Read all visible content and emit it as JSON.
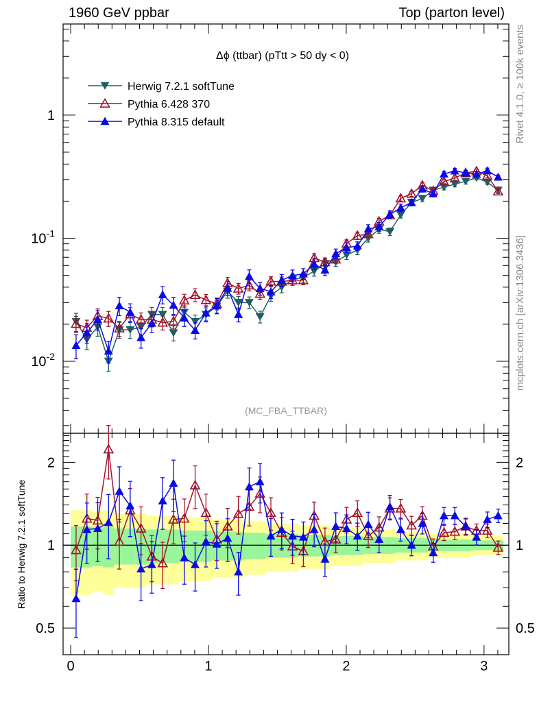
{
  "header": {
    "left": "1960 GeV ppbar",
    "right": "Top (parton level)"
  },
  "side_labels": {
    "rivet": "Rivet 4.1.0, ≥ 100k events",
    "mcplots": "mcplots.cern.ch [arXiv:1306.3436]"
  },
  "colors": {
    "herwig": "#1f5f62",
    "pythia6": "#a3122b",
    "pythia8": "#0a0ae6",
    "band_inner": "#99f599",
    "band_outer": "#ffff99"
  },
  "chart_data": [
    {
      "type": "line",
      "panel": "main",
      "title": "Δϕ (ttbar) (pTtt > 50 dy < 0)",
      "analysis_label": "(MC_FBA_TTBAR)",
      "xlabel": "",
      "ylabel": "",
      "xlim": [
        -0.055,
        3.18
      ],
      "ylim": [
        0.0026,
        5.5
      ],
      "yscale": "log",
      "yticks": [
        {
          "v": 1,
          "label": "1"
        },
        {
          "v": 0.1,
          "label": "10^-1"
        },
        {
          "v": 0.01,
          "label": "10^-2"
        }
      ],
      "xticks": [
        0,
        1,
        2,
        3
      ],
      "legend_position": "top-left",
      "bins": 40,
      "x_range": [
        0,
        3.14159
      ],
      "series": [
        {
          "name": "Herwig 7.2.1 softTune",
          "key": "herwig",
          "marker": "triangle-down-filled",
          "values": [
            0.021,
            0.015,
            0.019,
            0.01,
            0.018,
            0.018,
            0.019,
            0.024,
            0.024,
            0.017,
            0.025,
            0.021,
            0.024,
            0.028,
            0.037,
            0.03,
            0.03,
            0.023,
            0.034,
            0.04,
            0.046,
            0.048,
            0.054,
            0.062,
            0.064,
            0.073,
            0.08,
            0.1,
            0.118,
            0.113,
            0.155,
            0.195,
            0.21,
            0.245,
            0.26,
            0.275,
            0.29,
            0.31,
            0.285,
            0.245
          ],
          "rel_err": [
            0.17,
            0.17,
            0.16,
            0.17,
            0.15,
            0.15,
            0.15,
            0.14,
            0.14,
            0.14,
            0.13,
            0.13,
            0.13,
            0.12,
            0.12,
            0.12,
            0.11,
            0.11,
            0.1,
            0.1,
            0.1,
            0.09,
            0.09,
            0.09,
            0.08,
            0.08,
            0.08,
            0.07,
            0.07,
            0.07,
            0.06,
            0.06,
            0.06,
            0.05,
            0.05,
            0.05,
            0.05,
            0.04,
            0.04,
            0.04
          ]
        },
        {
          "name": "Pythia 6.428 370",
          "key": "pythia6",
          "marker": "triangle-up-open",
          "ratio": [
            0.96,
            1.25,
            1.23,
            2.23,
            1.03,
            1.34,
            1.15,
            0.91,
            0.86,
            1.24,
            1.25,
            1.65,
            1.31,
            1.05,
            1.17,
            1.3,
            1.38,
            1.54,
            1.31,
            1.11,
            0.99,
            0.95,
            1.28,
            1.03,
            1.05,
            1.24,
            1.31,
            1.08,
            1.16,
            1.36,
            1.36,
            1.18,
            1.28,
            0.99,
            1.11,
            1.12,
            1.17,
            1.13,
            1.13,
            0.98
          ],
          "rel_err": [
            0.15,
            0.15,
            0.14,
            0.14,
            0.14,
            0.13,
            0.13,
            0.13,
            0.13,
            0.12,
            0.12,
            0.12,
            0.11,
            0.11,
            0.11,
            0.1,
            0.1,
            0.1,
            0.09,
            0.09,
            0.09,
            0.08,
            0.08,
            0.08,
            0.07,
            0.07,
            0.07,
            0.06,
            0.06,
            0.06,
            0.05,
            0.05,
            0.05,
            0.04,
            0.04,
            0.04,
            0.04,
            0.04,
            0.04,
            0.04
          ]
        },
        {
          "name": "Pythia 8.315 default",
          "key": "pythia8",
          "marker": "triangle-up-filled",
          "ratio": [
            0.64,
            1.14,
            1.15,
            1.21,
            1.57,
            1.39,
            0.82,
            0.85,
            1.45,
            1.68,
            0.9,
            0.85,
            1.03,
            1.01,
            1.06,
            0.8,
            1.63,
            1.7,
            1.08,
            1.14,
            1.08,
            1.07,
            1.14,
            0.89,
            1.17,
            1.15,
            1.08,
            1.19,
            1.05,
            1.38,
            1.14,
            1.0,
            1.2,
            0.94,
            1.28,
            1.28,
            1.17,
            1.07,
            1.24,
            1.28
          ],
          "rel_err": [
            0.22,
            0.18,
            0.18,
            0.2,
            0.17,
            0.17,
            0.18,
            0.16,
            0.16,
            0.16,
            0.15,
            0.15,
            0.14,
            0.14,
            0.13,
            0.13,
            0.13,
            0.12,
            0.12,
            0.11,
            0.11,
            0.1,
            0.1,
            0.1,
            0.09,
            0.09,
            0.08,
            0.08,
            0.08,
            0.07,
            0.07,
            0.06,
            0.06,
            0.06,
            0.05,
            0.05,
            0.05,
            0.05,
            0.05,
            0.04
          ]
        }
      ]
    },
    {
      "type": "line",
      "panel": "ratio",
      "ylabel": "Ratio to Herwig 7.2.1 softTune",
      "ylim": [
        0.4,
        2.55
      ],
      "yscale": "log",
      "yticks": [
        {
          "v": 0.5,
          "label": "0.5"
        },
        {
          "v": 1,
          "label": "1"
        },
        {
          "v": 2,
          "label": "2"
        }
      ],
      "xticks": [
        {
          "v": 0,
          "label": "0"
        },
        {
          "v": 1,
          "label": "1"
        },
        {
          "v": 2,
          "label": "2"
        },
        {
          "v": 3,
          "label": "3"
        }
      ],
      "reference_line": 1
    }
  ]
}
